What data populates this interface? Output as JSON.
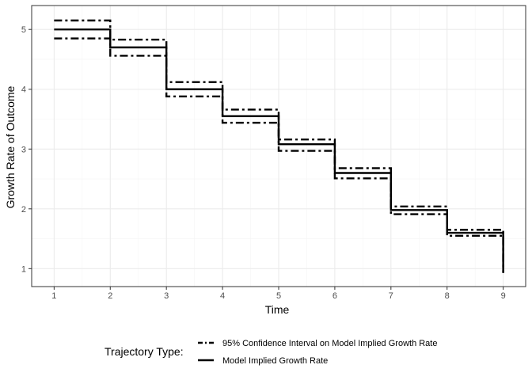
{
  "chart_data": {
    "type": "line",
    "step": true,
    "xlabel": "Time",
    "ylabel": "Growth Rate of Outcome",
    "xlim": [
      0.6,
      9.4
    ],
    "ylim": [
      0.7,
      5.4
    ],
    "x_ticks": [
      "1",
      "2",
      "3",
      "4",
      "5",
      "6",
      "7",
      "8",
      "9"
    ],
    "y_ticks": [
      "1",
      "2",
      "3",
      "4",
      "5"
    ],
    "grid": true,
    "legend": {
      "title": "Trajectory Type:",
      "position": "bottom",
      "entries": [
        {
          "label": "95% Confidence Interval on Model Implied Growth Rate",
          "style": "dashdot"
        },
        {
          "label": "Model Implied Growth Rate",
          "style": "solid"
        }
      ]
    },
    "x": [
      1,
      2,
      3,
      4,
      5,
      6,
      7,
      8,
      9
    ],
    "series": [
      {
        "role": "estimate",
        "style": "solid",
        "values": [
          5.0,
          4.7,
          4.0,
          3.55,
          3.08,
          2.6,
          1.98,
          1.6,
          0.93
        ]
      },
      {
        "role": "upper",
        "style": "dashdot",
        "values": [
          5.15,
          4.83,
          4.12,
          3.66,
          3.16,
          2.68,
          2.04,
          1.65,
          0.93
        ]
      },
      {
        "role": "lower",
        "style": "dashdot",
        "values": [
          4.85,
          4.56,
          3.88,
          3.44,
          2.97,
          2.51,
          1.91,
          1.55,
          0.93
        ]
      }
    ],
    "colors": {
      "line": "#000000",
      "grid_major": "#ebebeb",
      "grid_minor": "#f5f5f5",
      "panel_border": "#333333"
    }
  }
}
